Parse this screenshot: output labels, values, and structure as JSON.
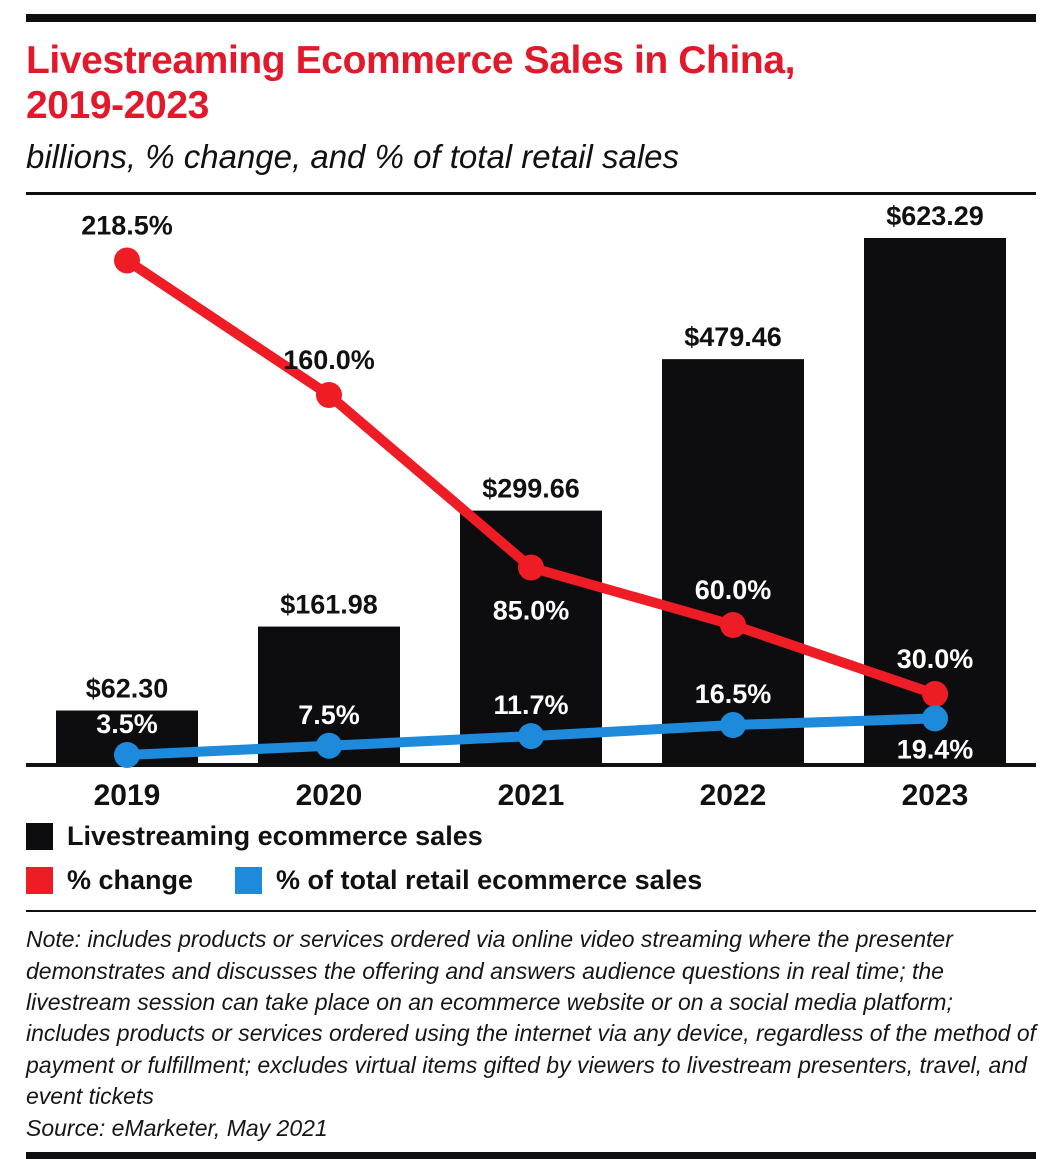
{
  "header": {
    "title": "Livestreaming Ecommerce Sales in China,\n2019-2023",
    "subtitle": "billions, % change, and % of total retail sales"
  },
  "colors": {
    "title_red": "#e2182b",
    "bar_black": "#0d0d0f",
    "line_red": "#ee1c25",
    "line_blue": "#1d8adb",
    "label_black": "#111111",
    "label_white": "#ffffff"
  },
  "chart_data": {
    "type": "bar",
    "subtype": "combo bar + two lines",
    "title": "Livestreaming Ecommerce Sales in China, 2019-2023",
    "subtitle": "billions, % change, and % of total retail sales",
    "categories": [
      "2019",
      "2020",
      "2021",
      "2022",
      "2023"
    ],
    "series": [
      {
        "name": "Livestreaming ecommerce sales",
        "type": "bar",
        "unit": "US$ billions",
        "color": "#0d0d0f",
        "values": [
          62.3,
          161.98,
          299.66,
          479.46,
          623.29
        ],
        "labels": [
          "$62.30",
          "$161.98",
          "$299.66",
          "$479.46",
          "$623.29"
        ]
      },
      {
        "name": "% change",
        "type": "line",
        "color": "#ee1c25",
        "values": [
          218.5,
          160.0,
          85.0,
          60.0,
          30.0
        ],
        "labels": [
          "218.5%",
          "160.0%",
          "85.0%",
          "60.0%",
          "30.0%"
        ]
      },
      {
        "name": "% of total retail ecommerce sales",
        "type": "line",
        "color": "#1d8adb",
        "values": [
          3.5,
          7.5,
          11.7,
          16.5,
          19.4
        ],
        "labels": [
          "3.5%",
          "7.5%",
          "11.7%",
          "16.5%",
          "19.4%"
        ]
      }
    ],
    "xlabel": "",
    "ylabel": "",
    "bar_axis_range": [
      0,
      650
    ],
    "pct_axis_range": [
      0,
      230
    ],
    "grid": false,
    "legend_position": "bottom"
  },
  "legend": {
    "items": [
      {
        "label": "Livestreaming ecommerce sales",
        "color": "#0d0d0f"
      },
      {
        "label": "% change",
        "color": "#ee1c25"
      },
      {
        "label": "% of total retail ecommerce sales",
        "color": "#1d8adb"
      }
    ]
  },
  "footer": {
    "note": "Note: includes products or services ordered via online video streaming where the presenter demonstrates and discusses the offering and answers audience questions in real time; the livestream session can take place on an ecommerce website or on a social media platform; includes products or services ordered using the internet via any device, regardless of the method of payment or fulfillment; excludes virtual items gifted by viewers to livestream presenters, travel, and event tickets",
    "source": "Source: eMarketer, May 2021"
  }
}
